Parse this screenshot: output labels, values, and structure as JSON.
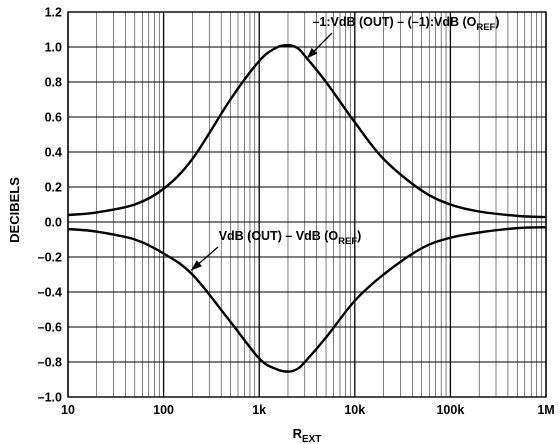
{
  "chart_data": {
    "type": "line",
    "title": "",
    "xlabel": {
      "main": "R",
      "sub": "EXT"
    },
    "ylabel": "DECIBELS",
    "xscale": "log",
    "xlim": [
      10,
      1000000
    ],
    "ylim": [
      -1.0,
      1.2
    ],
    "grid": true,
    "x_ticks": [
      {
        "value": 10,
        "label": "10"
      },
      {
        "value": 100,
        "label": "100"
      },
      {
        "value": 1000,
        "label": "1k"
      },
      {
        "value": 10000,
        "label": "10k"
      },
      {
        "value": 100000,
        "label": "100k"
      },
      {
        "value": 1000000,
        "label": "1M"
      }
    ],
    "y_ticks": [
      {
        "value": 1.2,
        "label": "1.2"
      },
      {
        "value": 1.0,
        "label": "1.0"
      },
      {
        "value": 0.8,
        "label": "0.8"
      },
      {
        "value": 0.6,
        "label": "0.6"
      },
      {
        "value": 0.4,
        "label": "0.4"
      },
      {
        "value": 0.2,
        "label": "0.2"
      },
      {
        "value": 0.0,
        "label": "0.0"
      },
      {
        "value": -0.2,
        "label": "–0.2"
      },
      {
        "value": -0.4,
        "label": "–0.4"
      },
      {
        "value": -0.6,
        "label": "–0.6"
      },
      {
        "value": -0.8,
        "label": "–0.8"
      },
      {
        "value": -1.0,
        "label": "–1.0"
      }
    ],
    "series": [
      {
        "key": "upper",
        "x": [
          10,
          20,
          50,
          100,
          200,
          500,
          1000,
          1500,
          2000,
          2500,
          3000,
          5000,
          10000,
          20000,
          50000,
          100000,
          200000,
          500000,
          1000000
        ],
        "y": [
          0.04,
          0.055,
          0.1,
          0.19,
          0.36,
          0.7,
          0.92,
          0.995,
          1.01,
          0.995,
          0.95,
          0.8,
          0.57,
          0.36,
          0.18,
          0.1,
          0.06,
          0.035,
          0.028
        ]
      },
      {
        "key": "lower",
        "x": [
          10,
          20,
          50,
          100,
          200,
          500,
          1000,
          1500,
          2000,
          2500,
          3000,
          5000,
          10000,
          20000,
          50000,
          100000,
          200000,
          500000,
          1000000
        ],
        "y": [
          -0.04,
          -0.055,
          -0.1,
          -0.18,
          -0.3,
          -0.57,
          -0.78,
          -0.84,
          -0.855,
          -0.84,
          -0.8,
          -0.66,
          -0.45,
          -0.3,
          -0.15,
          -0.09,
          -0.06,
          -0.035,
          -0.03
        ]
      }
    ],
    "annotations": [
      {
        "series": "upper",
        "text_main": "–1:VdB (OUT) – (–1):VdB (O",
        "text_sub": "REF",
        "text_end": ")",
        "arrow_to": {
          "x": 3000,
          "y": 0.9
        }
      },
      {
        "series": "lower",
        "text_main": "VdB (OUT) – VdB (O",
        "text_sub": "REF",
        "text_end": ")",
        "arrow_to": {
          "x": 180,
          "y": -0.3
        }
      }
    ],
    "colors": {
      "line": "#000000",
      "grid": "#000000",
      "background": "#ffffff"
    }
  }
}
